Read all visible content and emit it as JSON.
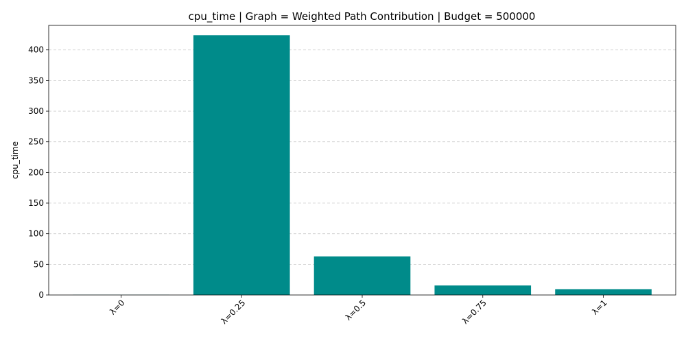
{
  "chart_data": {
    "type": "bar",
    "title": "cpu_time | Graph = Weighted Path Contribution | Budget = 500000",
    "xlabel": "",
    "ylabel": "cpu_time",
    "categories": [
      "λ=0",
      "λ=0.25",
      "λ=0.5",
      "λ=0.75",
      "λ=1"
    ],
    "values": [
      0.3,
      424,
      63,
      15.5,
      9.5
    ],
    "ylim": [
      0,
      440
    ],
    "yticks": [
      0,
      50,
      100,
      150,
      200,
      250,
      300,
      350,
      400
    ],
    "grid": "y-dashed",
    "bar_color": "#008b8a",
    "x_tick_rotation": 45
  }
}
